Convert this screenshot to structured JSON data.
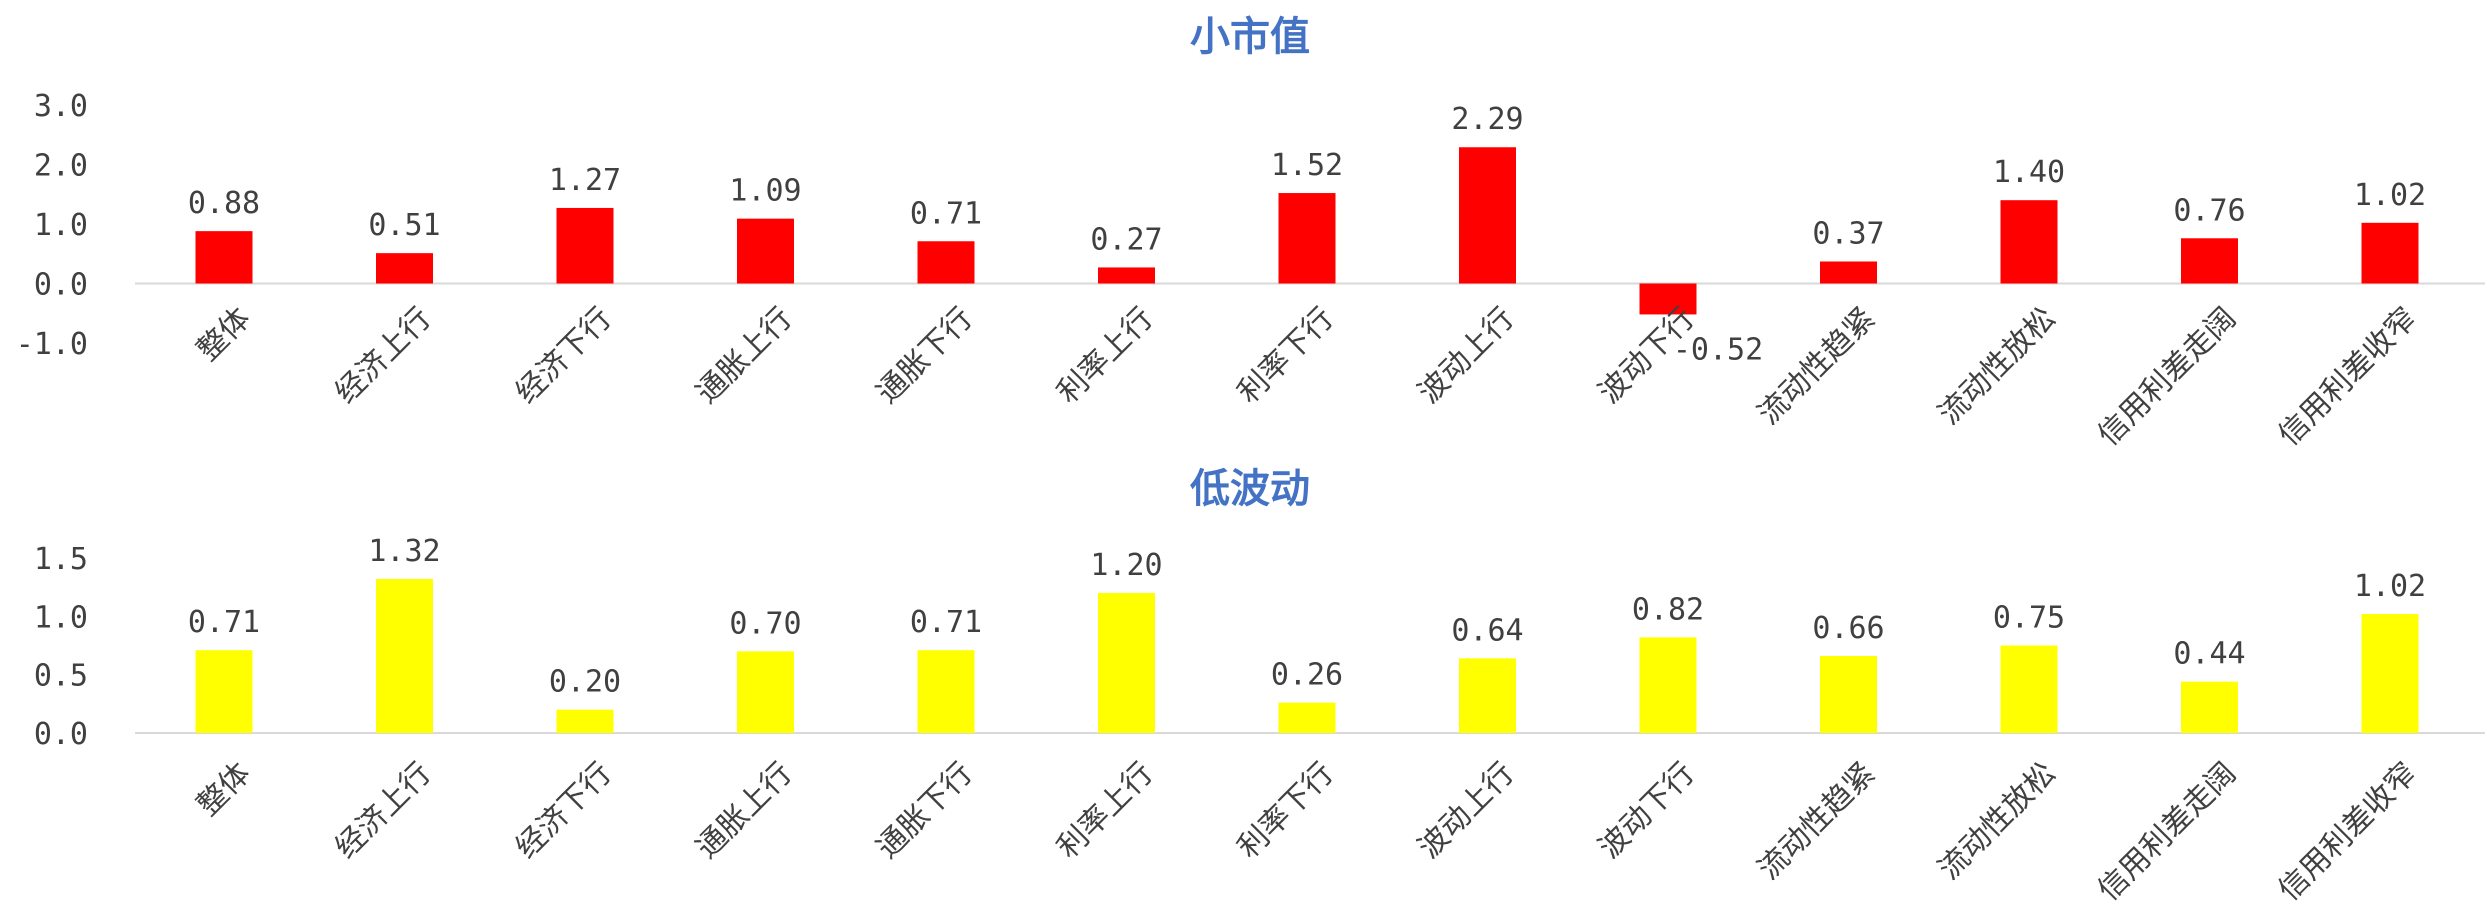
{
  "chart_data": [
    {
      "type": "bar",
      "title": "小市值",
      "categories": [
        "整体",
        "经济上行",
        "经济下行",
        "通胀上行",
        "通胀下行",
        "利率上行",
        "利率下行",
        "波动上行",
        "波动下行",
        "流动性趋紧",
        "流动性放松",
        "信用利差走阔",
        "信用利差收窄"
      ],
      "values": [
        0.88,
        0.51,
        1.27,
        1.09,
        0.71,
        0.27,
        1.52,
        2.29,
        -0.52,
        0.37,
        1.4,
        0.76,
        1.02
      ],
      "value_labels": [
        "0.88",
        "0.51",
        "1.27",
        "1.09",
        "0.71",
        "0.27",
        "1.52",
        "2.29",
        "-0.52",
        "0.37",
        "1.40",
        "0.76",
        "1.02"
      ],
      "yticks": [
        "3.0",
        "2.0",
        "1.0",
        "0.0",
        "-1.0"
      ],
      "ylim": [
        -1.0,
        3.0
      ],
      "color": "#ff0000",
      "grid": false,
      "legend": "none",
      "xlabel": "",
      "ylabel": ""
    },
    {
      "type": "bar",
      "title": "低波动",
      "categories": [
        "整体",
        "经济上行",
        "经济下行",
        "通胀上行",
        "通胀下行",
        "利率上行",
        "利率下行",
        "波动上行",
        "波动下行",
        "流动性趋紧",
        "流动性放松",
        "信用利差走阔",
        "信用利差收窄"
      ],
      "values": [
        0.71,
        1.32,
        0.2,
        0.7,
        0.71,
        1.2,
        0.26,
        0.64,
        0.82,
        0.66,
        0.75,
        0.44,
        1.02
      ],
      "value_labels": [
        "0.71",
        "1.32",
        "0.20",
        "0.70",
        "0.71",
        "1.20",
        "0.26",
        "0.64",
        "0.82",
        "0.66",
        "0.75",
        "0.44",
        "1.02"
      ],
      "yticks": [
        "1.5",
        "1.0",
        "0.5",
        "0.0"
      ],
      "ylim": [
        0.0,
        1.5
      ],
      "color": "#ffff00",
      "grid": false,
      "legend": "none",
      "xlabel": "",
      "ylabel": ""
    }
  ]
}
